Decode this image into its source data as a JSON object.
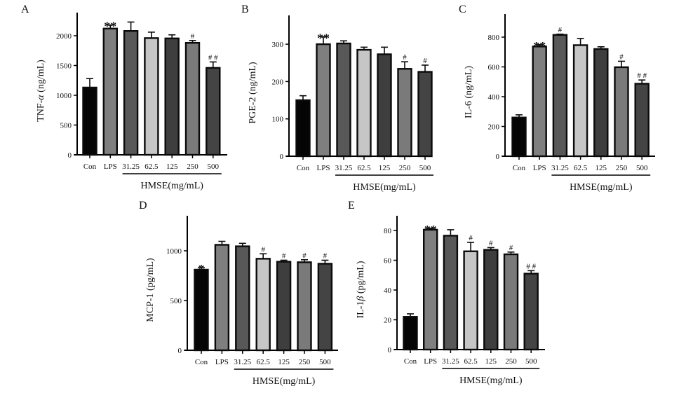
{
  "figure": {
    "group_label": "HMSE(mg/mL)"
  },
  "chart_data": [
    {
      "panel": "A",
      "type": "bar",
      "ylabel": "TNF-α (ng/mL)",
      "ylabel_prefix": "TNF-",
      "ylabel_greek": "α",
      "ylabel_suffix": " (ng/mL)",
      "xlabel": "HMSE(mg/mL)",
      "categories": [
        "Con",
        "LPS",
        "31.25",
        "62.5",
        "125",
        "250",
        "500"
      ],
      "values": [
        1130,
        2120,
        2080,
        1960,
        1955,
        1880,
        1460
      ],
      "errors": [
        150,
        60,
        150,
        100,
        60,
        40,
        100
      ],
      "significance": [
        "",
        "**",
        "",
        "",
        "",
        "#",
        "# #"
      ],
      "yticks": [
        0,
        500,
        1000,
        1500,
        2000
      ],
      "ylim": [
        0,
        2350
      ],
      "grouped_categories": [
        "31.25",
        "62.5",
        "125",
        "250",
        "500"
      ],
      "grid": false
    },
    {
      "panel": "B",
      "type": "bar",
      "ylabel": "PGE-2 (ng/mL)",
      "ylabel_prefix": "PGE-2",
      "ylabel_greek": "",
      "ylabel_suffix": " (ng/mL)",
      "xlabel": "HMSE(mg/mL)",
      "categories": [
        "Con",
        "LPS",
        "31.25",
        "62.5",
        "125",
        "250",
        "500"
      ],
      "values": [
        150,
        300,
        302,
        285,
        273,
        234,
        226
      ],
      "errors": [
        12,
        20,
        7,
        7,
        19,
        19,
        18
      ],
      "significance": [
        "",
        "**",
        "",
        "",
        "",
        "#",
        "#"
      ],
      "yticks": [
        0,
        100,
        200,
        300
      ],
      "ylim": [
        0,
        380
      ],
      "grouped_categories": [
        "31.25",
        "62.5",
        "125",
        "250",
        "500"
      ],
      "grid": false
    },
    {
      "panel": "C",
      "type": "bar",
      "ylabel": "IL-6 (ng/mL)",
      "ylabel_prefix": "IL-6",
      "ylabel_greek": "",
      "ylabel_suffix": "  (ng/mL)",
      "xlabel": "HMSE(mg/mL)",
      "categories": [
        "Con",
        "LPS",
        "31.25",
        "62.5",
        "125",
        "250",
        "500"
      ],
      "values": [
        260,
        737,
        815,
        746,
        720,
        598,
        487
      ],
      "errors": [
        18,
        12,
        5,
        45,
        15,
        40,
        25
      ],
      "significance": [
        "",
        "**",
        "#",
        "",
        "",
        "#",
        "# #"
      ],
      "yticks": [
        0,
        200,
        400,
        600,
        800
      ],
      "ylim": [
        0,
        960
      ],
      "grouped_categories": [
        "31.25",
        "62.5",
        "125",
        "250",
        "500"
      ],
      "grid": false
    },
    {
      "panel": "D",
      "type": "bar",
      "ylabel": "MCP-1 (pg/mL)",
      "ylabel_prefix": "MCP-1",
      "ylabel_greek": "",
      "ylabel_suffix": " (pg/mL)",
      "xlabel": "HMSE(mg/mL)",
      "categories": [
        "Con",
        "LPS",
        "31.25",
        "62.5",
        "125",
        "250",
        "500"
      ],
      "values": [
        810,
        1060,
        1045,
        920,
        890,
        885,
        870
      ],
      "errors": [
        20,
        35,
        30,
        50,
        15,
        25,
        35
      ],
      "significance": [
        "*",
        "",
        "",
        "#",
        "#",
        "#",
        "#"
      ],
      "yticks": [
        0,
        500,
        1000
      ],
      "ylim": [
        0,
        1350
      ],
      "grouped_categories": [
        "31.25",
        "62.5",
        "125",
        "250",
        "500"
      ],
      "grid": false
    },
    {
      "panel": "E",
      "type": "bar",
      "ylabel": "IL-1β (pg/mL)",
      "ylabel_prefix": "IL-1",
      "ylabel_greek": "β",
      "ylabel_suffix": " (pg/mL)",
      "xlabel": "HMSE(mg/mL)",
      "categories": [
        "Con",
        "LPS",
        "31.25",
        "62.5",
        "125",
        "250",
        "500"
      ],
      "values": [
        22,
        80.5,
        76.5,
        66,
        67,
        64,
        51
      ],
      "errors": [
        2,
        1,
        4,
        6,
        1.5,
        1.5,
        2
      ],
      "significance": [
        "",
        "**",
        "",
        "#",
        "#",
        "#",
        "# #"
      ],
      "yticks": [
        0,
        20,
        40,
        60,
        80
      ],
      "ylim": [
        0,
        90
      ],
      "grouped_categories": [
        "31.25",
        "62.5",
        "125",
        "250",
        "500"
      ],
      "grid": false
    }
  ],
  "style": {
    "bar_colors": [
      "#050505",
      "#7f7f7f",
      "#585858",
      "#c6c6c6",
      "#3e3e3e",
      "#7a7a7a",
      "#444444"
    ],
    "outline_color": "#0a0a0a"
  }
}
